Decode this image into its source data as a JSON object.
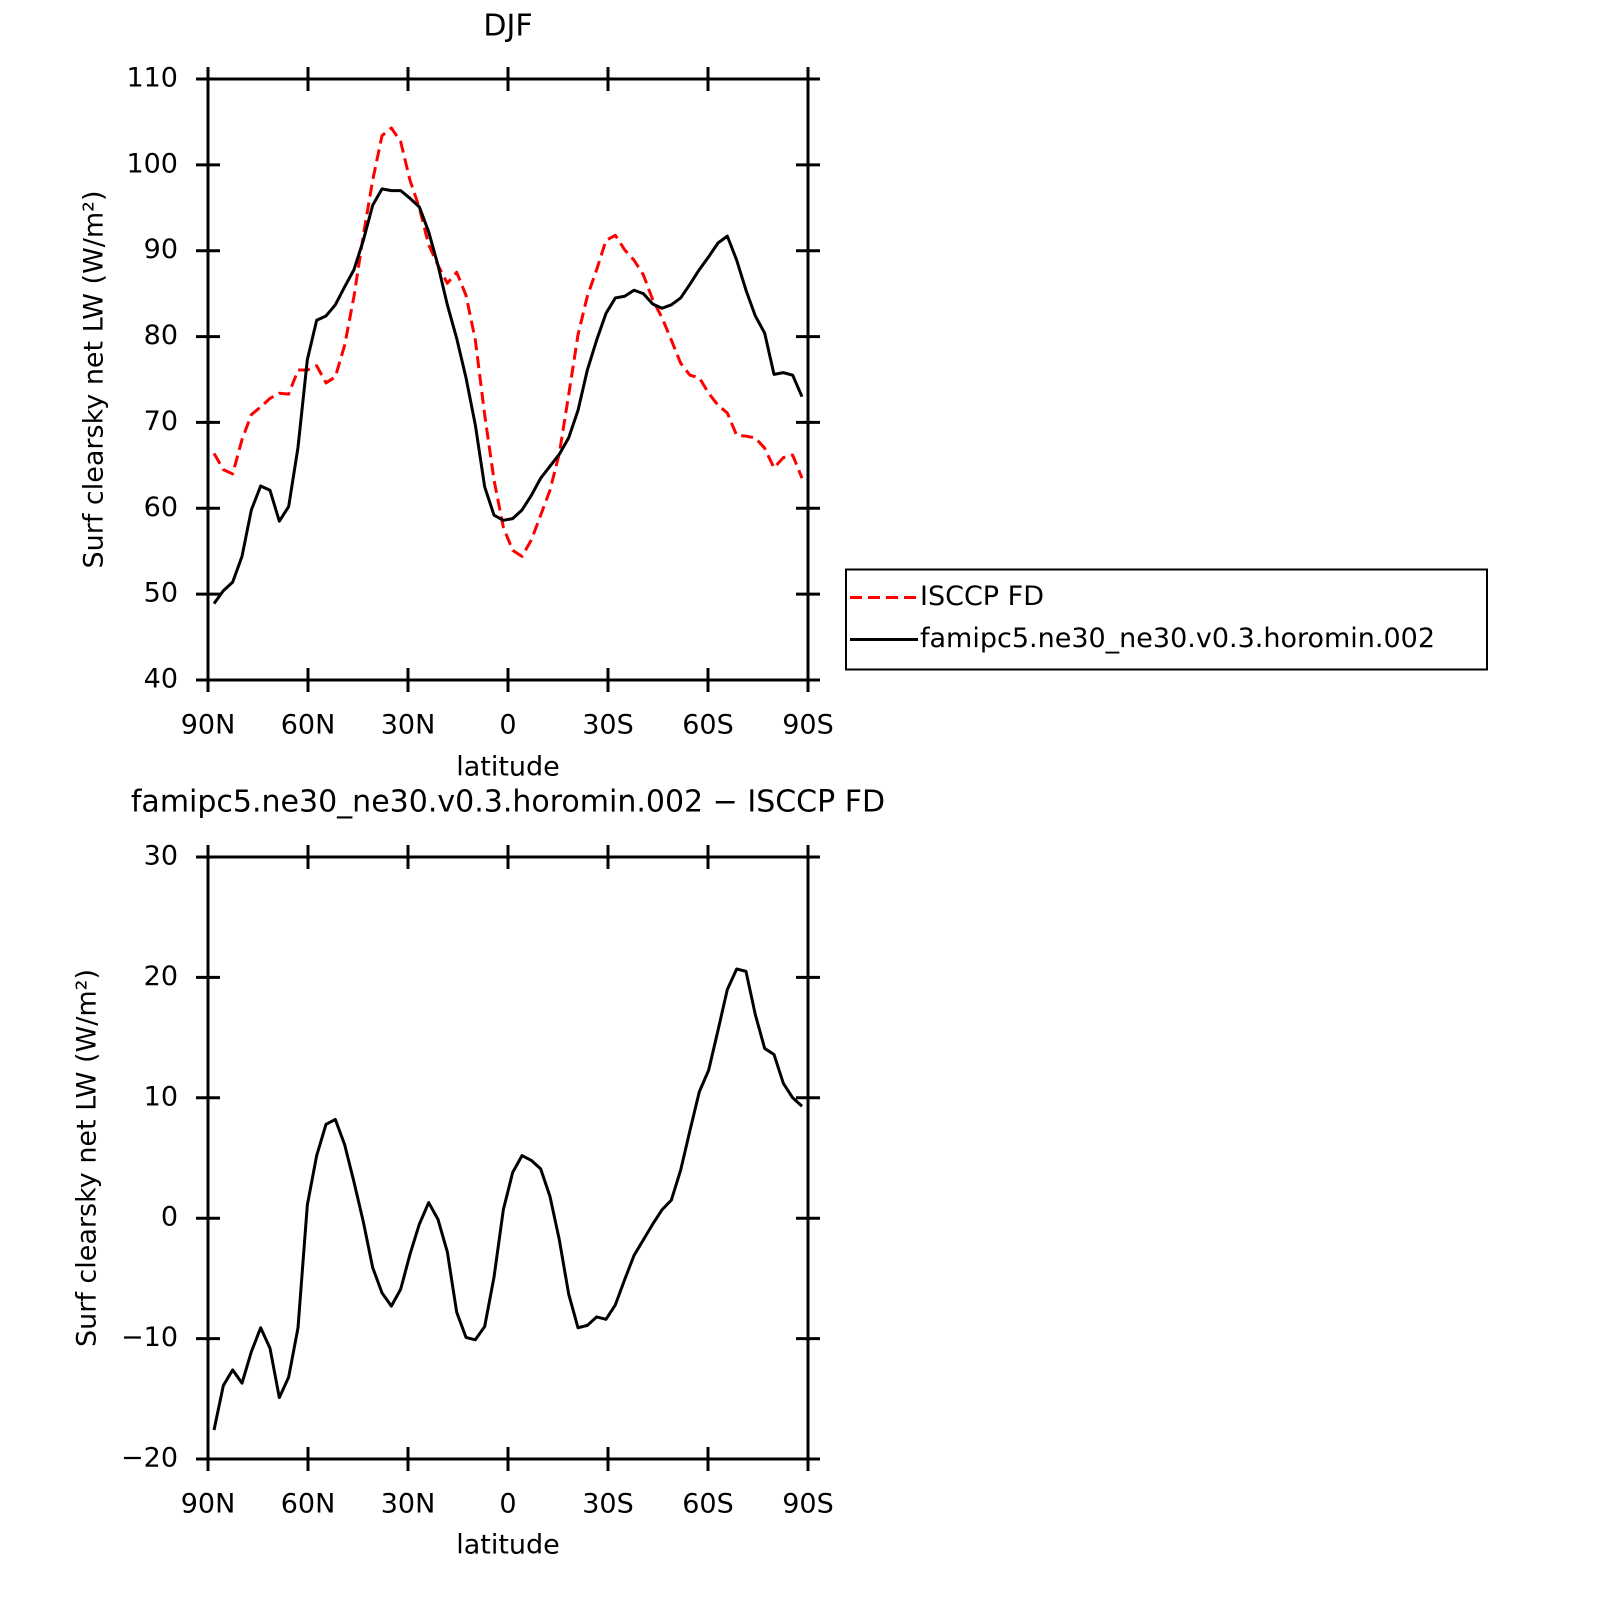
{
  "chart_data": [
    {
      "type": "line",
      "title": "DJF",
      "xlabel": "latitude",
      "ylabel": "Surf clearsky net LW (W/m²)",
      "x": [
        88.2,
        85.4,
        82.6,
        79.8,
        77.0,
        74.2,
        71.4,
        68.6,
        65.8,
        63.0,
        60.2,
        57.4,
        54.6,
        51.8,
        49.0,
        46.2,
        43.4,
        40.6,
        37.8,
        35.0,
        32.2,
        29.4,
        26.6,
        23.8,
        21.0,
        18.2,
        15.4,
        12.6,
        9.8,
        7.0,
        4.2,
        1.4,
        -1.4,
        -4.2,
        -7.0,
        -9.8,
        -12.6,
        -15.4,
        -18.2,
        -21.0,
        -23.8,
        -26.6,
        -29.4,
        -32.2,
        -35.0,
        -37.8,
        -40.6,
        -43.4,
        -46.2,
        -49.0,
        -51.8,
        -54.6,
        -57.4,
        -60.2,
        -63.0,
        -65.8,
        -68.6,
        -71.4,
        -74.2,
        -77.0,
        -79.8,
        -82.6,
        -85.4,
        -88.2
      ],
      "series": [
        {
          "name": "ISCCP FD",
          "color": "#ff0000",
          "style": "dashed",
          "values": [
            66.4,
            64.5,
            64.0,
            68.0,
            70.9,
            71.8,
            72.8,
            73.4,
            73.3,
            76.1,
            76.1,
            76.6,
            74.6,
            75.3,
            79.0,
            84.7,
            91.8,
            98.2,
            103.4,
            104.3,
            102.7,
            98.2,
            95.0,
            90.7,
            88.3,
            86.2,
            87.5,
            84.8,
            79.6,
            70.9,
            63.3,
            57.8,
            55.1,
            54.4,
            56.3,
            59.2,
            62.1,
            66.4,
            73.2,
            80.2,
            84.7,
            87.8,
            91.2,
            91.8,
            90.1,
            88.9,
            87.2,
            84.3,
            82.2,
            79.6,
            76.9,
            75.5,
            75.2,
            73.4,
            72.0,
            71.1,
            68.5,
            68.4,
            68.2,
            67.0,
            64.7,
            65.9,
            66.2,
            63.5
          ]
        },
        {
          "name": "famipc5.ne30_ne30.v0.3.horomin.002",
          "color": "#000000",
          "style": "solid",
          "values": [
            48.9,
            50.4,
            51.4,
            54.4,
            59.8,
            62.6,
            62.1,
            58.5,
            60.2,
            67.1,
            77.3,
            81.9,
            82.4,
            83.7,
            85.8,
            87.8,
            91.2,
            95.3,
            97.2,
            97.0,
            97.0,
            96.1,
            95.1,
            92.2,
            88.3,
            83.7,
            79.8,
            75.2,
            69.7,
            62.5,
            59.2,
            58.6,
            58.8,
            59.8,
            61.5,
            63.5,
            64.9,
            66.3,
            68.2,
            71.4,
            76.1,
            79.6,
            82.7,
            84.5,
            84.7,
            85.4,
            85.0,
            83.8,
            83.3,
            83.7,
            84.5,
            86.1,
            87.8,
            89.3,
            90.9,
            91.7,
            88.9,
            85.4,
            82.4,
            80.4,
            75.6,
            75.8,
            75.5,
            73.0
          ]
        }
      ],
      "xlim": [
        90,
        -90
      ],
      "xticks": [
        {
          "value": 90,
          "label": "90N"
        },
        {
          "value": 60,
          "label": "60N"
        },
        {
          "value": 30,
          "label": "30N"
        },
        0,
        {
          "value": -30,
          "label": "30S"
        },
        {
          "value": -60,
          "label": "60S"
        },
        {
          "value": -90,
          "label": "90S"
        }
      ],
      "ylim": [
        40,
        110
      ],
      "yticks": [
        40,
        50,
        60,
        70,
        80,
        90,
        100,
        110
      ],
      "legend": "right"
    },
    {
      "type": "line",
      "title": "famipc5.ne30_ne30.v0.3.horomin.002 − ISCCP FD",
      "xlabel": "latitude",
      "ylabel": "Surf clearsky net LW (W/m²)",
      "x": [
        88.2,
        85.4,
        82.6,
        79.8,
        77.0,
        74.2,
        71.4,
        68.6,
        65.8,
        63.0,
        60.2,
        57.4,
        54.6,
        51.8,
        49.0,
        46.2,
        43.4,
        40.6,
        37.8,
        35.0,
        32.2,
        29.4,
        26.6,
        23.8,
        21.0,
        18.2,
        15.4,
        12.6,
        9.8,
        7.0,
        4.2,
        1.4,
        -1.4,
        -4.2,
        -7.0,
        -9.8,
        -12.6,
        -15.4,
        -18.2,
        -21.0,
        -23.8,
        -26.6,
        -29.4,
        -32.2,
        -35.0,
        -37.8,
        -40.6,
        -43.4,
        -46.2,
        -49.0,
        -51.8,
        -54.6,
        -57.4,
        -60.2,
        -63.0,
        -65.8,
        -68.6,
        -71.4,
        -74.2,
        -77.0,
        -79.8,
        -82.6,
        -85.4,
        -88.2
      ],
      "values": [
        -17.6,
        -13.9,
        -12.6,
        -13.7,
        -11.1,
        -9.1,
        -10.8,
        -14.9,
        -13.2,
        -9.1,
        1.1,
        5.2,
        7.8,
        8.2,
        6.1,
        3.0,
        -0.3,
        -4.1,
        -6.2,
        -7.3,
        -5.9,
        -3.0,
        -0.5,
        1.3,
        -0.1,
        -2.8,
        -7.8,
        -9.9,
        -10.1,
        -9.0,
        -4.9,
        0.7,
        3.8,
        5.2,
        4.8,
        4.1,
        1.8,
        -1.8,
        -6.3,
        -9.1,
        -8.9,
        -8.2,
        -8.4,
        -7.2,
        -5.1,
        -3.1,
        -1.8,
        -0.5,
        0.7,
        1.5,
        4.0,
        7.3,
        10.5,
        12.3,
        15.6,
        19.0,
        20.7,
        20.5,
        16.9,
        14.1,
        13.6,
        11.2,
        10.0,
        9.3
      ],
      "color": "#000000",
      "style": "solid",
      "xlim": [
        90,
        -90
      ],
      "xticks": [
        {
          "value": 90,
          "label": "90N"
        },
        {
          "value": 60,
          "label": "60N"
        },
        {
          "value": 30,
          "label": "30N"
        },
        0,
        {
          "value": -30,
          "label": "30S"
        },
        {
          "value": -60,
          "label": "60S"
        },
        {
          "value": -90,
          "label": "90S"
        }
      ],
      "ylim": [
        -20,
        30
      ],
      "yticks": [
        {
          "value": -20,
          "label": "−20"
        },
        {
          "value": -10,
          "label": "−10"
        },
        0,
        10,
        20,
        30
      ]
    }
  ]
}
